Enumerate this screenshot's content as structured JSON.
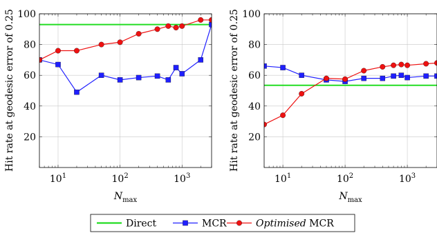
{
  "chart_data": [
    {
      "type": "line",
      "xscale": "log",
      "xlim": [
        5,
        3000
      ],
      "ylim": [
        0,
        100
      ],
      "ylabel": "Hit rate at geodesic error of 0.25",
      "xlabel": "N",
      "xlabel_sub": "max",
      "x_ticks": [
        {
          "base": "10",
          "exp": "1",
          "value": 10
        },
        {
          "base": "10",
          "exp": "2",
          "value": 100
        },
        {
          "base": "10",
          "exp": "3",
          "value": 1000
        }
      ],
      "y_ticks": [
        "20",
        "40",
        "60",
        "80",
        "100"
      ],
      "grid": true,
      "series": [
        {
          "name": "Direct",
          "color": "#22dd22",
          "marker": "none",
          "x": [
            5,
            3000
          ],
          "y": [
            93,
            93
          ]
        },
        {
          "name": "MCR",
          "color": "#1f1fff",
          "marker": "square",
          "x": [
            5,
            10,
            20,
            50,
            100,
            200,
            400,
            600,
            800,
            1000,
            2000,
            3000
          ],
          "y": [
            70,
            67,
            49,
            60,
            57,
            58.5,
            59.5,
            57,
            65,
            61,
            70,
            93
          ]
        },
        {
          "name": "Optimised MCR",
          "color": "#ee1111",
          "marker": "circle",
          "x": [
            5,
            10,
            20,
            50,
            100,
            200,
            400,
            600,
            800,
            1000,
            2000,
            3000
          ],
          "y": [
            70,
            76,
            76,
            80,
            81.5,
            87,
            90,
            92,
            91,
            92,
            96,
            96
          ]
        }
      ]
    },
    {
      "type": "line",
      "xscale": "log",
      "xlim": [
        5,
        3000
      ],
      "ylim": [
        0,
        100
      ],
      "ylabel": "Hit rate at geodesic error of 0.25",
      "xlabel": "N",
      "xlabel_sub": "max",
      "x_ticks": [
        {
          "base": "10",
          "exp": "1",
          "value": 10
        },
        {
          "base": "10",
          "exp": "2",
          "value": 100
        },
        {
          "base": "10",
          "exp": "3",
          "value": 1000
        }
      ],
      "y_ticks": [
        "20",
        "40",
        "60",
        "80",
        "100"
      ],
      "grid": true,
      "series": [
        {
          "name": "Direct",
          "color": "#22dd22",
          "marker": "none",
          "x": [
            5,
            3000
          ],
          "y": [
            53.5,
            53.5
          ]
        },
        {
          "name": "MCR",
          "color": "#1f1fff",
          "marker": "square",
          "x": [
            5,
            10,
            20,
            50,
            100,
            200,
            400,
            600,
            800,
            1000,
            2000,
            3000
          ],
          "y": [
            66,
            65,
            60,
            57,
            56,
            58,
            58,
            59.5,
            60,
            58.5,
            59.5,
            59.5
          ]
        },
        {
          "name": "Optimised MCR",
          "color": "#ee1111",
          "marker": "circle",
          "x": [
            5,
            10,
            20,
            50,
            100,
            200,
            400,
            600,
            800,
            1000,
            2000,
            3000
          ],
          "y": [
            28,
            34,
            48,
            58,
            57.5,
            63,
            65.5,
            66.5,
            67,
            66.5,
            67.5,
            68
          ]
        }
      ]
    }
  ],
  "legend": {
    "position": "bottom-center",
    "items": [
      {
        "label_plain": "Direct",
        "label_italic": "",
        "color": "#22dd22",
        "marker": "none"
      },
      {
        "label_plain": "MCR",
        "label_italic": "",
        "color": "#1f1fff",
        "marker": "square"
      },
      {
        "label_plain": " MCR",
        "label_italic": "Optimised",
        "color": "#ee1111",
        "marker": "circle"
      }
    ]
  }
}
